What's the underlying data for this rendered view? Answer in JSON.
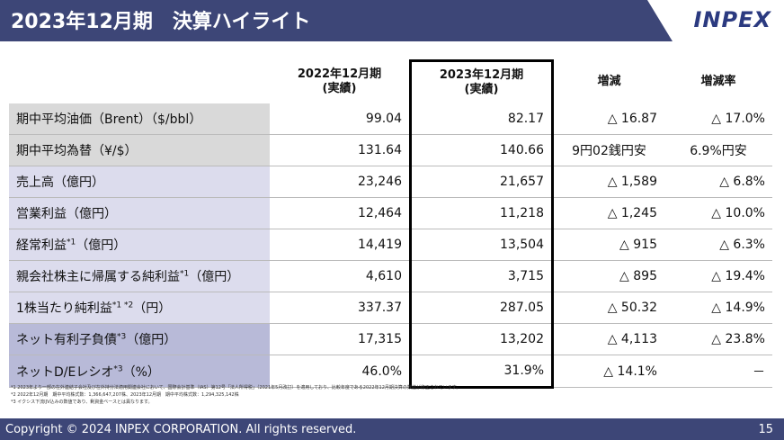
{
  "header": {
    "title": "2023年12月期　決算ハイライト",
    "logo": "INPEX"
  },
  "table": {
    "columns": [
      "2022年12月期\n(実績)",
      "2023年12月期\n(実績)",
      "増減",
      "増減率"
    ],
    "rows": [
      {
        "label": "期中平均油価（Brent）（$/bbl）",
        "cells": [
          "99.04",
          "82.17",
          "△ 16.87",
          "△ 17.0%"
        ]
      },
      {
        "label": "期中平均為替（¥/$）",
        "cells": [
          "131.64",
          "140.66",
          "9円02銭円安",
          "6.9%円安"
        ]
      },
      {
        "label": "売上高（億円）",
        "cells": [
          "23,246",
          "21,657",
          "△ 1,589",
          "△ 6.8%"
        ]
      },
      {
        "label": "営業利益（億円）",
        "cells": [
          "12,464",
          "11,218",
          "△ 1,245",
          "△ 10.0%"
        ]
      },
      {
        "label": "経常利益",
        "sup": "*1",
        "unit": "（億円）",
        "cells": [
          "14,419",
          "13,504",
          "△ 915",
          "△ 6.3%"
        ]
      },
      {
        "label": "親会社株主に帰属する純利益",
        "sup": "*1",
        "unit": "（億円）",
        "cells": [
          "4,610",
          "3,715",
          "△ 895",
          "△ 19.4%"
        ]
      },
      {
        "label": "1株当たり純利益",
        "sup": "*1 *2",
        "unit": "（円）",
        "cells": [
          "337.37",
          "287.05",
          "△ 50.32",
          "△ 14.9%"
        ]
      },
      {
        "label": "ネット有利子負債",
        "sup": "*3",
        "unit": "（億円）",
        "cells": [
          "17,315",
          "13,202",
          "△ 4,113",
          "△ 23.8%"
        ]
      },
      {
        "label": "ネットD/Eレシオ",
        "sup": "*3",
        "unit": "（%）",
        "cells": [
          "46.0%",
          "31.9%",
          "△ 14.1%",
          "－"
        ]
      }
    ]
  },
  "footnotes": [
    "*1 2023年より一部の在外連結子会社及び在外持分法適用関連会社において、国際会計基準（IAS）第12号「法人所得税」（2021年5月改訂）を適用しており、比較年度である2022年12月期決算の数値が修正されています。",
    "*2 2022年12月期　期中平均株式数：1,366,647,207株、2023年12月期　期中平均株式数：1,294,325,142株",
    "*3 イクシス下流IJV込みの数値であり、剰資金ベースとは異なります。"
  ],
  "footer": {
    "copyright": "Copyright © 2024 INPEX CORPORATION. All rights reserved.",
    "page": "15"
  }
}
